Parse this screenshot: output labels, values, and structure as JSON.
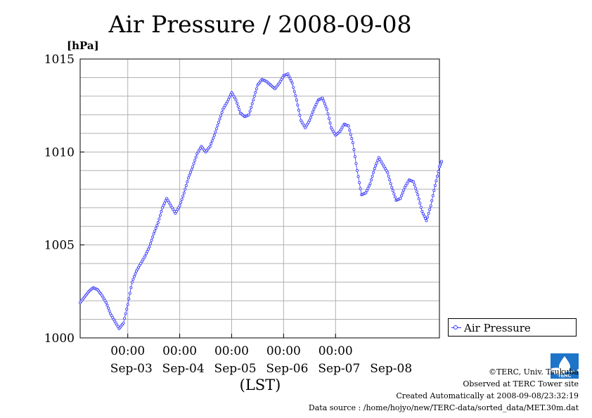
{
  "chart_data": {
    "type": "line",
    "title": "Air Pressure / 2008-09-08",
    "ylabel": "[hPa]",
    "xlabel": "(LST)",
    "ylim": [
      1000,
      1015
    ],
    "yticks": [
      "1000",
      "1005",
      "1010",
      "1015"
    ],
    "xlim": [
      "2008-09-02 02:00",
      "2008-09-09 00:00"
    ],
    "time_ticks": [
      "00:00",
      "00:00",
      "00:00",
      "00:00",
      "00:00"
    ],
    "date_labels": [
      "Sep-03",
      "Sep-04",
      "Sep-05",
      "Sep-06",
      "Sep-07",
      "Sep-08"
    ],
    "grid": true,
    "legend_position": "right",
    "series": [
      {
        "name": "Air Pressure",
        "color": "#3333ff",
        "points": [
          [
            "2008-09-02 02:00",
            1001.9
          ],
          [
            "2008-09-02 04:00",
            1002.2
          ],
          [
            "2008-09-02 06:00",
            1002.5
          ],
          [
            "2008-09-02 08:00",
            1002.7
          ],
          [
            "2008-09-02 10:00",
            1002.6
          ],
          [
            "2008-09-02 12:00",
            1002.3
          ],
          [
            "2008-09-02 14:00",
            1001.9
          ],
          [
            "2008-09-02 16:00",
            1001.3
          ],
          [
            "2008-09-02 18:00",
            1000.9
          ],
          [
            "2008-09-02 20:00",
            1000.5
          ],
          [
            "2008-09-02 22:00",
            1000.8
          ],
          [
            "2008-09-03 00:00",
            1001.8
          ],
          [
            "2008-09-03 02:00",
            1003.0
          ],
          [
            "2008-09-03 04:00",
            1003.6
          ],
          [
            "2008-09-03 06:00",
            1004.0
          ],
          [
            "2008-09-03 08:00",
            1004.4
          ],
          [
            "2008-09-03 10:00",
            1004.9
          ],
          [
            "2008-09-03 12:00",
            1005.6
          ],
          [
            "2008-09-03 14:00",
            1006.2
          ],
          [
            "2008-09-03 16:00",
            1007.0
          ],
          [
            "2008-09-03 18:00",
            1007.5
          ],
          [
            "2008-09-03 20:00",
            1007.1
          ],
          [
            "2008-09-03 22:00",
            1006.7
          ],
          [
            "2008-09-04 00:00",
            1007.1
          ],
          [
            "2008-09-04 02:00",
            1007.8
          ],
          [
            "2008-09-04 04:00",
            1008.6
          ],
          [
            "2008-09-04 06:00",
            1009.2
          ],
          [
            "2008-09-04 08:00",
            1009.9
          ],
          [
            "2008-09-04 10:00",
            1010.3
          ],
          [
            "2008-09-04 12:00",
            1010.0
          ],
          [
            "2008-09-04 14:00",
            1010.3
          ],
          [
            "2008-09-04 16:00",
            1010.9
          ],
          [
            "2008-09-04 18:00",
            1011.6
          ],
          [
            "2008-09-04 20:00",
            1012.3
          ],
          [
            "2008-09-04 22:00",
            1012.7
          ],
          [
            "2008-09-05 00:00",
            1013.2
          ],
          [
            "2008-09-05 02:00",
            1012.8
          ],
          [
            "2008-09-05 04:00",
            1012.1
          ],
          [
            "2008-09-05 06:00",
            1011.9
          ],
          [
            "2008-09-05 08:00",
            1012.0
          ],
          [
            "2008-09-05 10:00",
            1012.8
          ],
          [
            "2008-09-05 12:00",
            1013.6
          ],
          [
            "2008-09-05 14:00",
            1013.9
          ],
          [
            "2008-09-05 16:00",
            1013.8
          ],
          [
            "2008-09-05 18:00",
            1013.6
          ],
          [
            "2008-09-05 20:00",
            1013.4
          ],
          [
            "2008-09-05 22:00",
            1013.7
          ],
          [
            "2008-09-06 00:00",
            1014.1
          ],
          [
            "2008-09-06 02:00",
            1014.2
          ],
          [
            "2008-09-06 04:00",
            1013.7
          ],
          [
            "2008-09-06 06:00",
            1012.8
          ],
          [
            "2008-09-06 08:00",
            1011.7
          ],
          [
            "2008-09-06 10:00",
            1011.3
          ],
          [
            "2008-09-06 12:00",
            1011.7
          ],
          [
            "2008-09-06 14:00",
            1012.3
          ],
          [
            "2008-09-06 16:00",
            1012.8
          ],
          [
            "2008-09-06 18:00",
            1012.9
          ],
          [
            "2008-09-06 20:00",
            1012.3
          ],
          [
            "2008-09-06 22:00",
            1011.3
          ],
          [
            "2008-09-07 00:00",
            1010.9
          ],
          [
            "2008-09-07 02:00",
            1011.1
          ],
          [
            "2008-09-07 04:00",
            1011.5
          ],
          [
            "2008-09-07 06:00",
            1011.4
          ],
          [
            "2008-09-07 08:00",
            1010.5
          ],
          [
            "2008-09-07 10:00",
            1009.0
          ],
          [
            "2008-09-07 12:00",
            1007.7
          ],
          [
            "2008-09-07 14:00",
            1007.8
          ],
          [
            "2008-09-07 16:00",
            1008.3
          ],
          [
            "2008-09-07 18:00",
            1009.1
          ],
          [
            "2008-09-07 20:00",
            1009.7
          ],
          [
            "2008-09-07 22:00",
            1009.3
          ],
          [
            "2008-09-08 00:00",
            1008.9
          ],
          [
            "2008-09-08 02:00",
            1008.1
          ],
          [
            "2008-09-08 04:00",
            1007.4
          ],
          [
            "2008-09-08 06:00",
            1007.5
          ],
          [
            "2008-09-08 08:00",
            1008.1
          ],
          [
            "2008-09-08 10:00",
            1008.5
          ],
          [
            "2008-09-08 12:00",
            1008.4
          ],
          [
            "2008-09-08 14:00",
            1007.7
          ],
          [
            "2008-09-08 16:00",
            1006.8
          ],
          [
            "2008-09-08 18:00",
            1006.3
          ],
          [
            "2008-09-08 20:00",
            1007.1
          ],
          [
            "2008-09-08 22:00",
            1008.2
          ],
          [
            "2008-09-09 00:00",
            1009.2
          ],
          [
            "2008-09-09 01:00",
            1009.5
          ]
        ]
      }
    ]
  },
  "footer": {
    "copyright": "©TERC, Univ. Tsukuba",
    "observed": "Observed at TERC Tower site",
    "created": "Created Automatically at 2008-09-08/23:32:19",
    "source": "Data source : /home/hojyo/new/TERC-data/sorted_data/MET.30m.dat",
    "logo_text": "TERC"
  }
}
